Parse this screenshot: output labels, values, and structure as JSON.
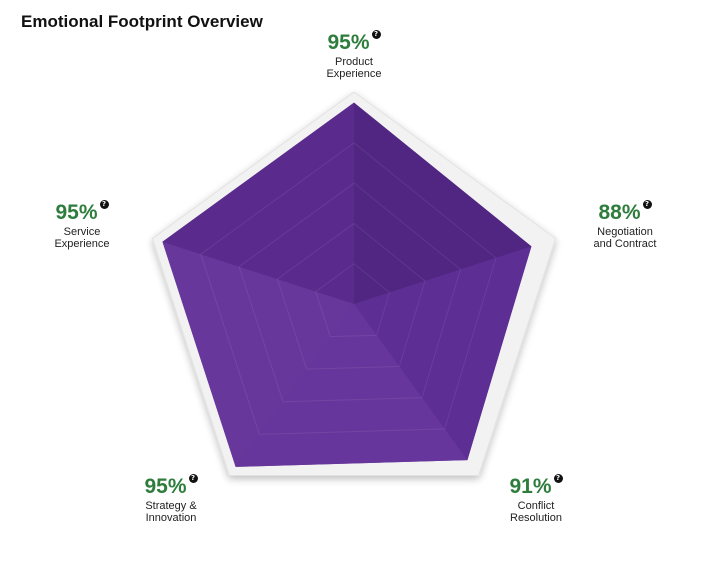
{
  "title": "Emotional Footprint Overview",
  "chart_data": {
    "type": "radar",
    "scale": [
      0,
      100
    ],
    "axes": [
      {
        "label": "Product\nExperience",
        "value": 95,
        "display": "95%"
      },
      {
        "label": "Negotiation\nand Contract",
        "value": 88,
        "display": "88%"
      },
      {
        "label": "Conflict\nResolution",
        "value": 91,
        "display": "91%"
      },
      {
        "label": "Strategy &\nInnovation",
        "value": 95,
        "display": "95%"
      },
      {
        "label": "Service\nExperience",
        "value": 95,
        "display": "95%"
      }
    ],
    "fill_color": "#5b2d8e",
    "frame_color": "#f2f2f2",
    "value_color": "#2e7d3c",
    "help_icon": "question-circle-icon"
  }
}
